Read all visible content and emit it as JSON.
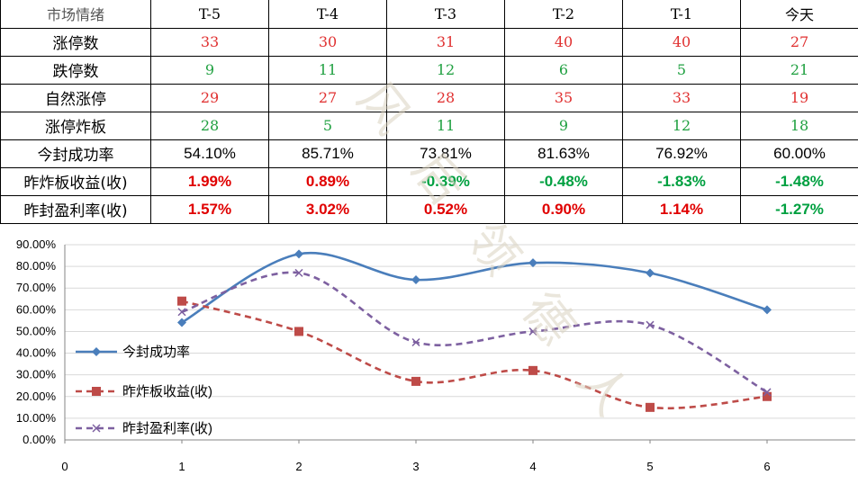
{
  "table": {
    "header": [
      "市场情绪",
      "T-5",
      "T-4",
      "T-3",
      "T-2",
      "T-1",
      "今天"
    ],
    "rows": [
      {
        "label": "涨停数",
        "values": [
          "33",
          "30",
          "31",
          "40",
          "40",
          "27"
        ],
        "color": "#e03030"
      },
      {
        "label": "跌停数",
        "values": [
          "9",
          "11",
          "12",
          "6",
          "5",
          "21"
        ],
        "color": "#1fa040"
      },
      {
        "label": "自然涨停",
        "values": [
          "29",
          "27",
          "28",
          "35",
          "33",
          "19"
        ],
        "color": "#e03030"
      },
      {
        "label": "涨停炸板",
        "values": [
          "28",
          "5",
          "11",
          "9",
          "12",
          "18"
        ],
        "color": "#1fa040"
      },
      {
        "label": "今封成功率",
        "values": [
          "54.10%",
          "85.71%",
          "73.81%",
          "81.63%",
          "76.92%",
          "60.00%"
        ]
      },
      {
        "label": "昨炸板收益(收)",
        "values": [
          "1.99%",
          "0.89%",
          "-0.39%",
          "-0.48%",
          "-1.83%",
          "-1.48%"
        ]
      },
      {
        "label": "昨封盈利率(收)",
        "values": [
          "1.57%",
          "3.02%",
          "0.52%",
          "0.90%",
          "1.14%",
          "-1.27%"
        ]
      }
    ]
  },
  "watermark": "风 后 领 德 人",
  "chart_data": {
    "type": "line",
    "x": [
      1,
      2,
      3,
      4,
      5,
      6
    ],
    "xlim": [
      0,
      6.6
    ],
    "xticks": [
      "0",
      "1",
      "2",
      "3",
      "4",
      "5",
      "6"
    ],
    "ylim": [
      0,
      90
    ],
    "yticks": [
      "0.00%",
      "10.00%",
      "20.00%",
      "30.00%",
      "40.00%",
      "50.00%",
      "60.00%",
      "70.00%",
      "80.00%",
      "90.00%"
    ],
    "series": [
      {
        "name": "今封成功率",
        "values": [
          54.1,
          85.71,
          73.81,
          81.63,
          76.92,
          60.0
        ],
        "color": "#4a7ebb",
        "marker": "diamond",
        "dash": false
      },
      {
        "name": "昨炸板收益(收)",
        "values": [
          64,
          50,
          27,
          32,
          15,
          20
        ],
        "color": "#be4b48",
        "marker": "square",
        "dash": true
      },
      {
        "name": "昨封盈利率(收)",
        "values": [
          59,
          77,
          45,
          50,
          53,
          22
        ],
        "color": "#7d60a0",
        "marker": "x",
        "dash": true
      }
    ],
    "legend_position": "left-middle",
    "grid": true
  }
}
